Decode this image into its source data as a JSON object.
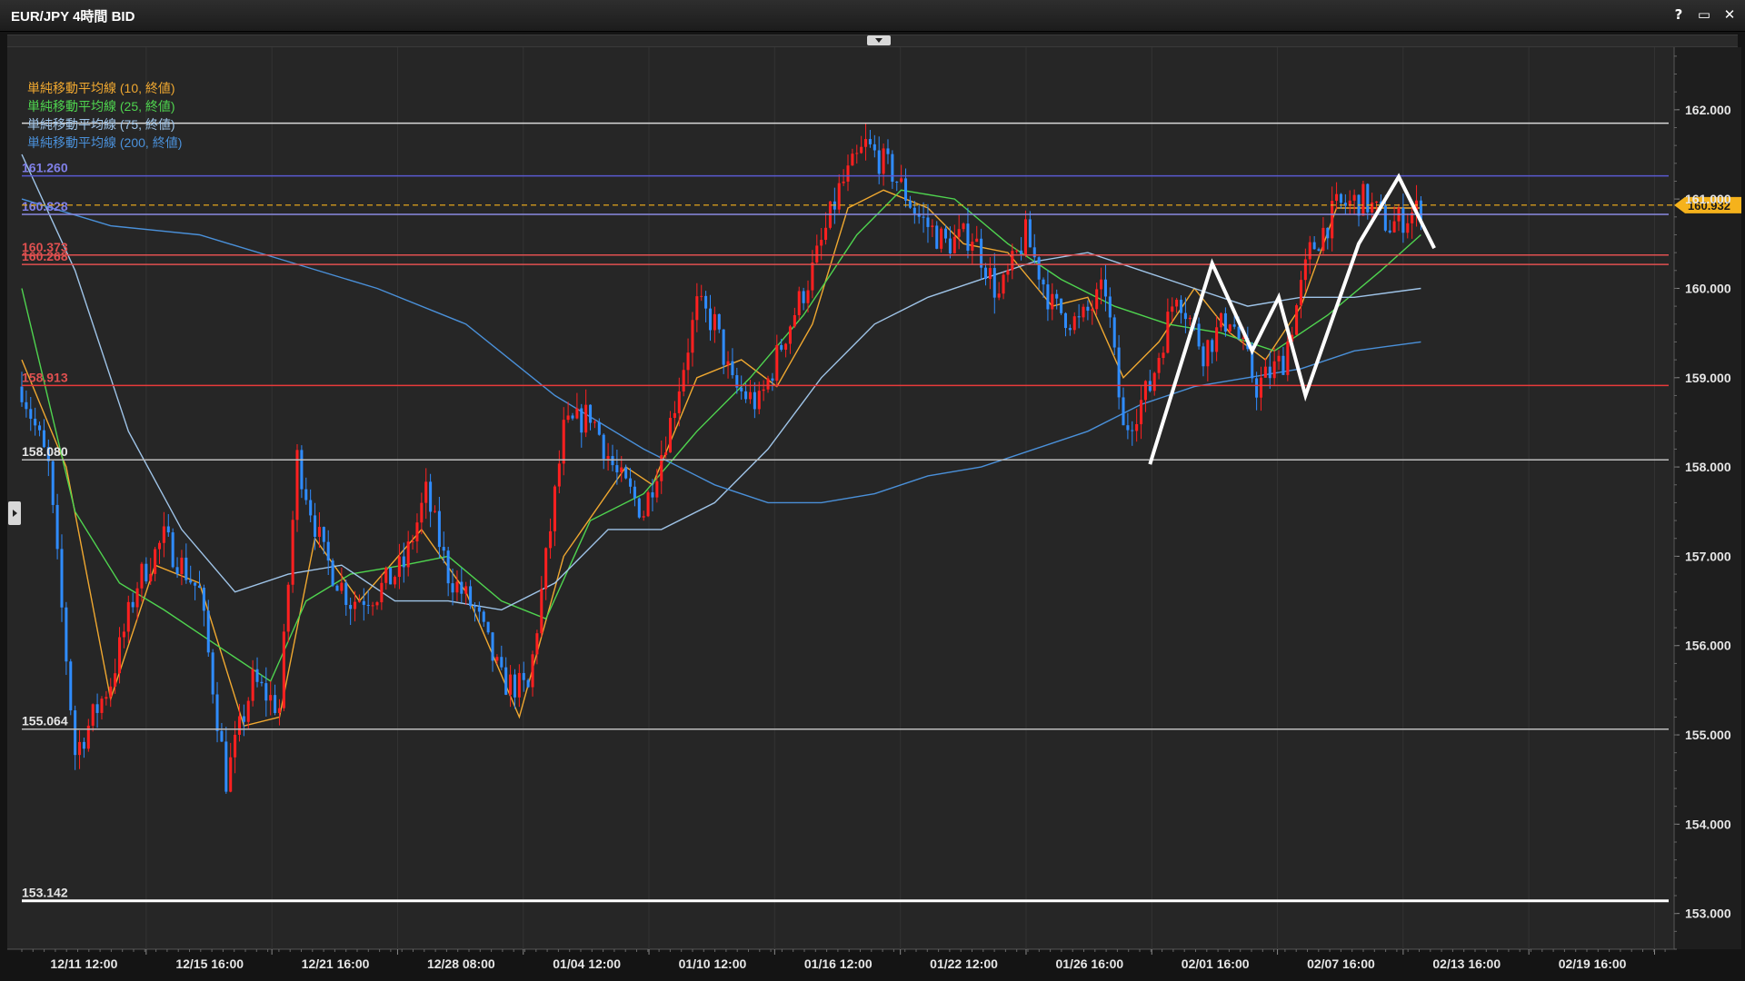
{
  "window": {
    "title": "EUR/JPY 4時間 BID",
    "controls": [
      "?",
      "▭",
      "✕"
    ]
  },
  "legend": [
    {
      "label": "単純移動平均線 (10, 終値)",
      "color": "#f0a830"
    },
    {
      "label": "単純移動平均線 (25, 終値)",
      "color": "#4fd44f"
    },
    {
      "label": "単純移動平均線 (75, 終値)",
      "color": "#9fc4e8"
    },
    {
      "label": "単純移動平均線 (200, 終値)",
      "color": "#4a90d9"
    }
  ],
  "colors": {
    "background": "#262626",
    "candle_up": "#ff2020",
    "candle_down": "#2f8cff",
    "price_tag": "#f5b21c"
  },
  "chart_data": {
    "type": "candlestick",
    "title": "EUR/JPY 4時間 BID",
    "ylim": [
      152.6,
      162.7
    ],
    "x_tick_labels": [
      "12/11 12:00",
      "12/15 16:00",
      "12/21 16:00",
      "12/28 08:00",
      "01/04 12:00",
      "01/10 12:00",
      "01/16 12:00",
      "01/22 12:00",
      "01/26 16:00",
      "02/01 16:00",
      "02/07 16:00",
      "02/13 16:00",
      "02/19 16:00"
    ],
    "y_tick_labels": [
      "162.000",
      "161.000",
      "160.000",
      "159.000",
      "158.000",
      "157.000",
      "156.000",
      "155.000",
      "154.000",
      "153.000"
    ],
    "y_ticks": [
      162,
      161,
      160,
      159,
      158,
      157,
      156,
      155,
      154,
      153
    ],
    "current_price": {
      "label": "160.932",
      "value": 160.932
    },
    "horizontal_lines": [
      {
        "label": "",
        "value": 161.85,
        "color": "#d9d9d9"
      },
      {
        "label": "161.260",
        "value": 161.26,
        "color": "#5a5ad0"
      },
      {
        "label": "160.828",
        "value": 160.828,
        "color": "#8a8ae0"
      },
      {
        "label": "160.373",
        "value": 160.373,
        "color": "#e05050"
      },
      {
        "label": "160.268",
        "value": 160.268,
        "color": "#e05050"
      },
      {
        "label": "158.913",
        "value": 158.913,
        "color": "#e83a3a"
      },
      {
        "label": "158.080",
        "value": 158.08,
        "color": "#bdbdbd"
      },
      {
        "label": "155.064",
        "value": 155.064,
        "color": "#bdbdbd"
      },
      {
        "label": "153.142",
        "value": 153.142,
        "color": "#ffffff"
      }
    ],
    "price_path": [
      [
        0,
        158.9
      ],
      [
        6,
        158.0
      ],
      [
        12,
        154.8
      ],
      [
        20,
        155.6
      ],
      [
        26,
        156.7
      ],
      [
        32,
        157.2
      ],
      [
        40,
        156.6
      ],
      [
        46,
        154.5
      ],
      [
        52,
        155.6
      ],
      [
        58,
        155.3
      ],
      [
        62,
        158.1
      ],
      [
        68,
        157.0
      ],
      [
        74,
        156.5
      ],
      [
        80,
        156.6
      ],
      [
        86,
        156.9
      ],
      [
        91,
        157.7
      ],
      [
        96,
        156.8
      ],
      [
        102,
        156.4
      ],
      [
        108,
        155.6
      ],
      [
        114,
        155.5
      ],
      [
        122,
        158.4
      ],
      [
        128,
        158.6
      ],
      [
        134,
        157.9
      ],
      [
        140,
        157.5
      ],
      [
        146,
        158.5
      ],
      [
        152,
        159.8
      ],
      [
        156,
        159.6
      ],
      [
        160,
        158.9
      ],
      [
        166,
        158.7
      ],
      [
        172,
        159.5
      ],
      [
        178,
        160.2
      ],
      [
        184,
        161.1
      ],
      [
        190,
        161.6
      ],
      [
        196,
        161.3
      ],
      [
        202,
        160.8
      ],
      [
        208,
        160.5
      ],
      [
        214,
        160.6
      ],
      [
        220,
        159.9
      ],
      [
        226,
        160.6
      ],
      [
        232,
        159.8
      ],
      [
        238,
        159.6
      ],
      [
        244,
        160.0
      ],
      [
        248,
        158.4
      ],
      [
        254,
        158.9
      ],
      [
        260,
        160.0
      ],
      [
        266,
        159.3
      ],
      [
        272,
        159.7
      ],
      [
        278,
        158.9
      ],
      [
        284,
        159.2
      ],
      [
        290,
        160.4
      ],
      [
        296,
        160.9
      ],
      [
        302,
        161.0
      ],
      [
        308,
        160.7
      ],
      [
        315,
        160.9
      ]
    ],
    "series": [
      {
        "name": "単純移動平均線 (10, 終値)",
        "values": [
          [
            0,
            159.2
          ],
          [
            10,
            158.0
          ],
          [
            20,
            155.4
          ],
          [
            30,
            156.9
          ],
          [
            40,
            156.7
          ],
          [
            50,
            155.1
          ],
          [
            58,
            155.2
          ],
          [
            66,
            157.2
          ],
          [
            76,
            156.5
          ],
          [
            90,
            157.3
          ],
          [
            100,
            156.6
          ],
          [
            112,
            155.2
          ],
          [
            122,
            157.0
          ],
          [
            136,
            158.0
          ],
          [
            142,
            157.8
          ],
          [
            152,
            159.0
          ],
          [
            162,
            159.2
          ],
          [
            170,
            158.9
          ],
          [
            178,
            159.6
          ],
          [
            186,
            160.9
          ],
          [
            194,
            161.1
          ],
          [
            204,
            160.9
          ],
          [
            212,
            160.5
          ],
          [
            222,
            160.4
          ],
          [
            232,
            159.8
          ],
          [
            240,
            159.9
          ],
          [
            248,
            159.0
          ],
          [
            256,
            159.4
          ],
          [
            264,
            160.0
          ],
          [
            272,
            159.5
          ],
          [
            280,
            159.2
          ],
          [
            288,
            159.8
          ],
          [
            296,
            160.9
          ],
          [
            306,
            160.9
          ],
          [
            315,
            160.9
          ]
        ]
      },
      {
        "name": "単純移動平均線 (25, 終値)",
        "values": [
          [
            0,
            160.0
          ],
          [
            12,
            157.5
          ],
          [
            22,
            156.7
          ],
          [
            32,
            156.4
          ],
          [
            44,
            156.0
          ],
          [
            56,
            155.6
          ],
          [
            64,
            156.5
          ],
          [
            74,
            156.8
          ],
          [
            86,
            156.9
          ],
          [
            96,
            157.0
          ],
          [
            108,
            156.5
          ],
          [
            118,
            156.3
          ],
          [
            128,
            157.4
          ],
          [
            140,
            157.7
          ],
          [
            152,
            158.4
          ],
          [
            164,
            159.0
          ],
          [
            176,
            159.7
          ],
          [
            188,
            160.6
          ],
          [
            198,
            161.1
          ],
          [
            210,
            161.0
          ],
          [
            222,
            160.5
          ],
          [
            234,
            160.1
          ],
          [
            246,
            159.8
          ],
          [
            258,
            159.6
          ],
          [
            270,
            159.5
          ],
          [
            282,
            159.3
          ],
          [
            294,
            159.7
          ],
          [
            306,
            160.2
          ],
          [
            315,
            160.6
          ]
        ]
      },
      {
        "name": "単純移動平均線 (75, 終値)",
        "values": [
          [
            0,
            161.5
          ],
          [
            12,
            160.2
          ],
          [
            24,
            158.4
          ],
          [
            36,
            157.3
          ],
          [
            48,
            156.6
          ],
          [
            60,
            156.8
          ],
          [
            72,
            156.9
          ],
          [
            84,
            156.5
          ],
          [
            96,
            156.5
          ],
          [
            108,
            156.4
          ],
          [
            120,
            156.7
          ],
          [
            132,
            157.3
          ],
          [
            144,
            157.3
          ],
          [
            156,
            157.6
          ],
          [
            168,
            158.2
          ],
          [
            180,
            159.0
          ],
          [
            192,
            159.6
          ],
          [
            204,
            159.9
          ],
          [
            216,
            160.1
          ],
          [
            228,
            160.3
          ],
          [
            240,
            160.4
          ],
          [
            252,
            160.2
          ],
          [
            264,
            160.0
          ],
          [
            276,
            159.8
          ],
          [
            288,
            159.9
          ],
          [
            300,
            159.9
          ],
          [
            315,
            160.0
          ]
        ]
      },
      {
        "name": "単純移動平均線 (200, 終値)",
        "values": [
          [
            0,
            161.0
          ],
          [
            20,
            160.7
          ],
          [
            40,
            160.6
          ],
          [
            60,
            160.3
          ],
          [
            80,
            160.0
          ],
          [
            100,
            159.6
          ],
          [
            120,
            158.8
          ],
          [
            140,
            158.2
          ],
          [
            156,
            157.8
          ],
          [
            168,
            157.6
          ],
          [
            180,
            157.6
          ],
          [
            192,
            157.7
          ],
          [
            204,
            157.9
          ],
          [
            216,
            158.0
          ],
          [
            228,
            158.2
          ],
          [
            240,
            158.4
          ],
          [
            252,
            158.7
          ],
          [
            264,
            158.9
          ],
          [
            276,
            159.0
          ],
          [
            288,
            159.1
          ],
          [
            300,
            159.3
          ],
          [
            315,
            159.4
          ]
        ]
      }
    ],
    "annotations": [
      {
        "name": "w-pattern",
        "points": [
          [
            254,
            158.03
          ],
          [
            268,
            160.28
          ],
          [
            277,
            159.3
          ],
          [
            283,
            159.9
          ],
          [
            289,
            158.8
          ],
          [
            301,
            160.5
          ],
          [
            310,
            161.25
          ],
          [
            318,
            160.45
          ]
        ]
      }
    ]
  }
}
